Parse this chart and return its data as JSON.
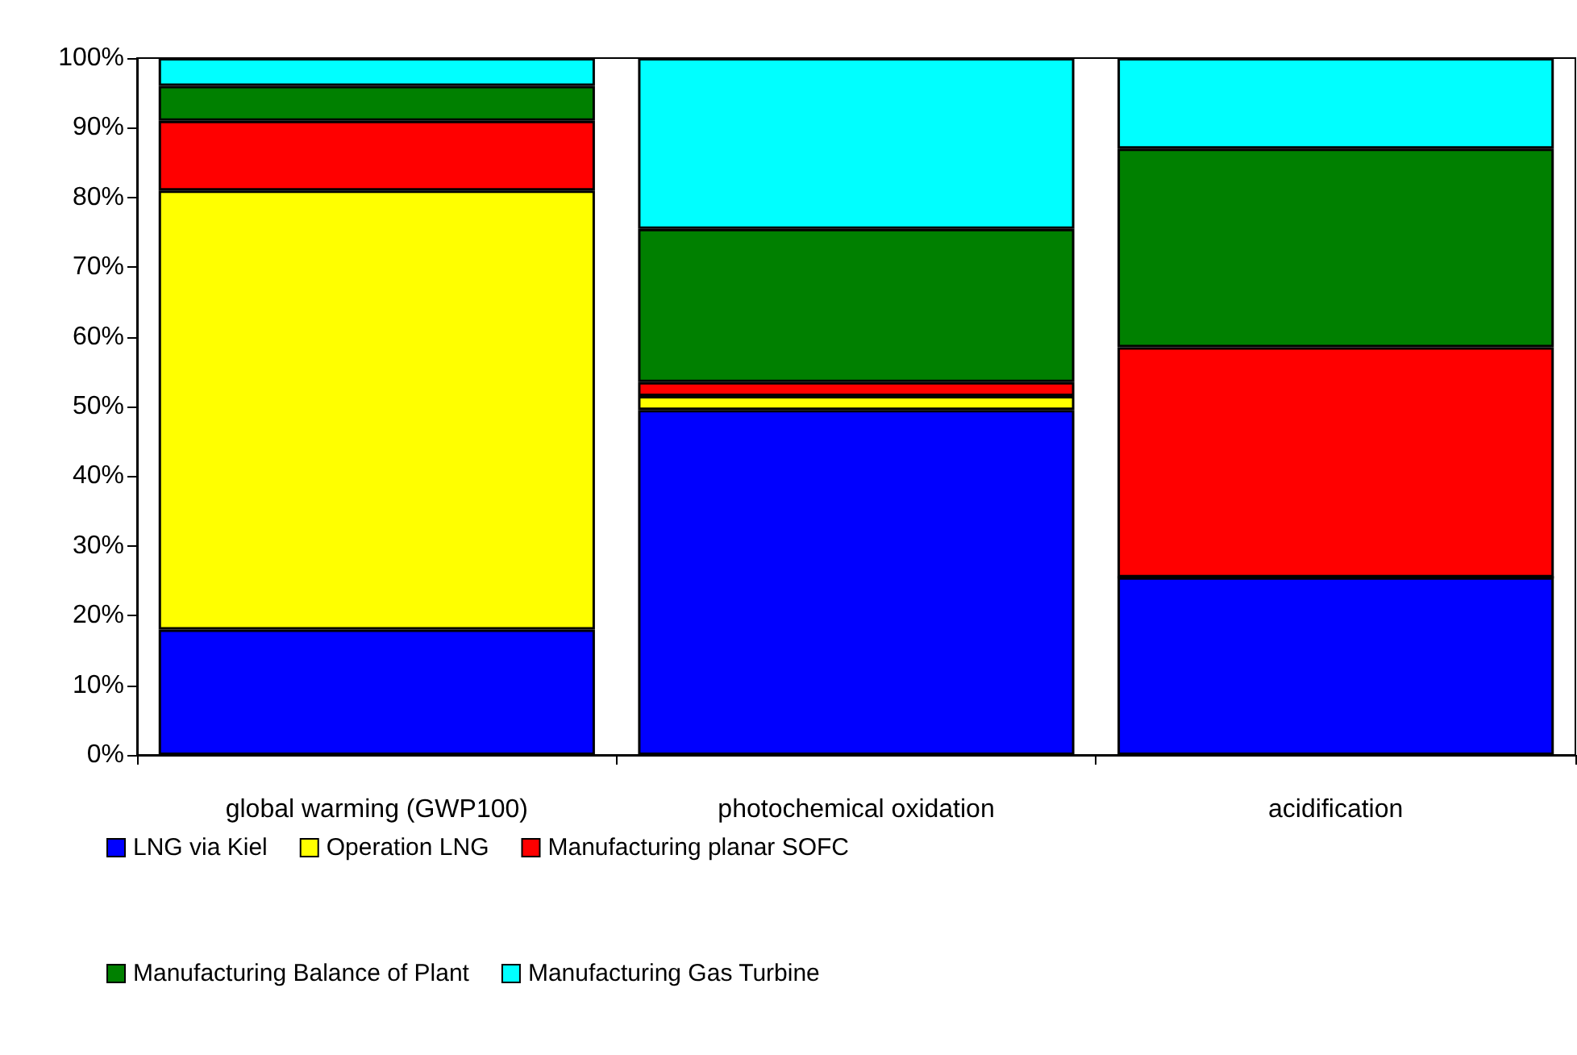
{
  "chart_data": {
    "type": "bar",
    "stacked": true,
    "categories": [
      "global warming (GWP100)",
      "photochemical oxidation",
      "acidification"
    ],
    "series": [
      {
        "name": "LNG via Kiel",
        "color": "#0000ff",
        "values": [
          18,
          49.5,
          25.5
        ]
      },
      {
        "name": "Operation LNG",
        "color": "#ffff00",
        "values": [
          63,
          2,
          0
        ]
      },
      {
        "name": "Manufacturing planar SOFC",
        "color": "#ff0000",
        "values": [
          10,
          2,
          33
        ]
      },
      {
        "name": "Manufacturing Balance of Plant",
        "color": "#008000",
        "values": [
          5,
          22,
          28.5
        ]
      },
      {
        "name": "Manufacturing Gas Turbine",
        "color": "#00ffff",
        "values": [
          4,
          24.5,
          13
        ]
      }
    ],
    "ylim": [
      0,
      100
    ],
    "yticks": [
      {
        "value": 0,
        "label": "0%"
      },
      {
        "value": 10,
        "label": "10%"
      },
      {
        "value": 20,
        "label": "20%"
      },
      {
        "value": 30,
        "label": "30%"
      },
      {
        "value": 40,
        "label": "40%"
      },
      {
        "value": 50,
        "label": "50%"
      },
      {
        "value": 60,
        "label": "60%"
      },
      {
        "value": 70,
        "label": "70%"
      },
      {
        "value": 80,
        "label": "80%"
      },
      {
        "value": 90,
        "label": "90%"
      },
      {
        "value": 100,
        "label": "100%"
      }
    ],
    "grid": false,
    "legend": "bottom"
  }
}
